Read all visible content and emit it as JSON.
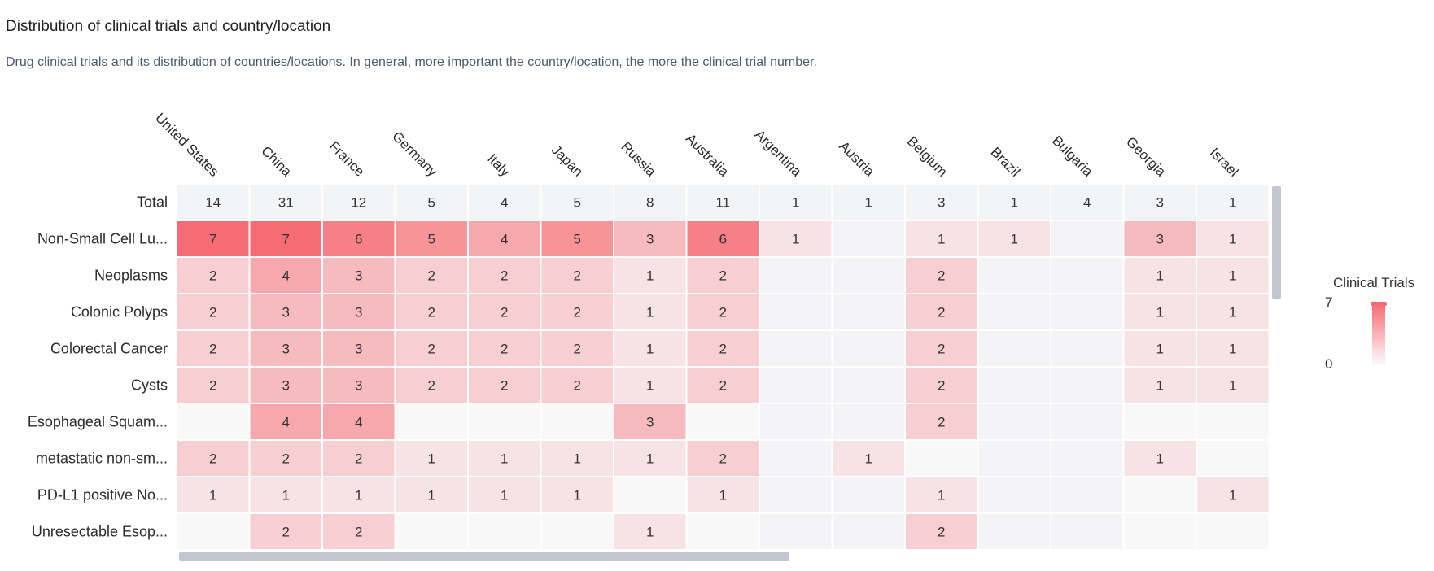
{
  "header": {
    "title": "Distribution of clinical trials and country/location",
    "subtitle": "Drug clinical trials and its distribution of countries/locations. In general, more important the country/location, the more the clinical trial number."
  },
  "chart_data": {
    "type": "heatmap",
    "columns": [
      "United States",
      "China",
      "France",
      "Germany",
      "Italy",
      "Japan",
      "Russia",
      "Australia",
      "Argentina",
      "Austria",
      "Belgium",
      "Brazil",
      "Bulgaria",
      "Georgia",
      "Israel"
    ],
    "rows": [
      "Total",
      "Non-Small Cell Lu...",
      "Neoplasms",
      "Colonic Polyps",
      "Colorectal Cancer",
      "Cysts",
      "Esophageal Squam...",
      "metastatic non-sm...",
      "PD-L1 positive No...",
      "Unresectable Esop..."
    ],
    "values": [
      [
        14,
        31,
        12,
        5,
        4,
        5,
        8,
        11,
        1,
        1,
        3,
        1,
        4,
        3,
        1
      ],
      [
        7,
        7,
        6,
        5,
        4,
        5,
        3,
        6,
        1,
        null,
        1,
        1,
        null,
        3,
        1
      ],
      [
        2,
        4,
        3,
        2,
        2,
        2,
        1,
        2,
        null,
        null,
        2,
        null,
        null,
        1,
        1
      ],
      [
        2,
        3,
        3,
        2,
        2,
        2,
        1,
        2,
        null,
        null,
        2,
        null,
        null,
        1,
        1
      ],
      [
        2,
        3,
        3,
        2,
        2,
        2,
        1,
        2,
        null,
        null,
        2,
        null,
        null,
        1,
        1
      ],
      [
        2,
        3,
        3,
        2,
        2,
        2,
        1,
        2,
        null,
        null,
        2,
        null,
        null,
        1,
        1
      ],
      [
        null,
        4,
        4,
        null,
        null,
        null,
        3,
        null,
        null,
        null,
        2,
        null,
        null,
        null,
        null
      ],
      [
        2,
        2,
        2,
        1,
        1,
        1,
        1,
        2,
        null,
        1,
        null,
        null,
        null,
        1,
        null
      ],
      [
        1,
        1,
        1,
        1,
        1,
        1,
        null,
        1,
        null,
        null,
        1,
        null,
        null,
        null,
        1
      ],
      [
        null,
        2,
        2,
        null,
        null,
        null,
        1,
        null,
        null,
        null,
        2,
        null,
        null,
        null,
        null
      ]
    ],
    "color_scale": {
      "min": 0,
      "max": 7,
      "low_color": "#f7f7f8",
      "high_color": "#f76c74"
    },
    "total_row_color": "#f3f4f6",
    "legend": {
      "title": "Clinical Trials",
      "max_label": "7",
      "min_label": "0",
      "position": "right"
    }
  }
}
